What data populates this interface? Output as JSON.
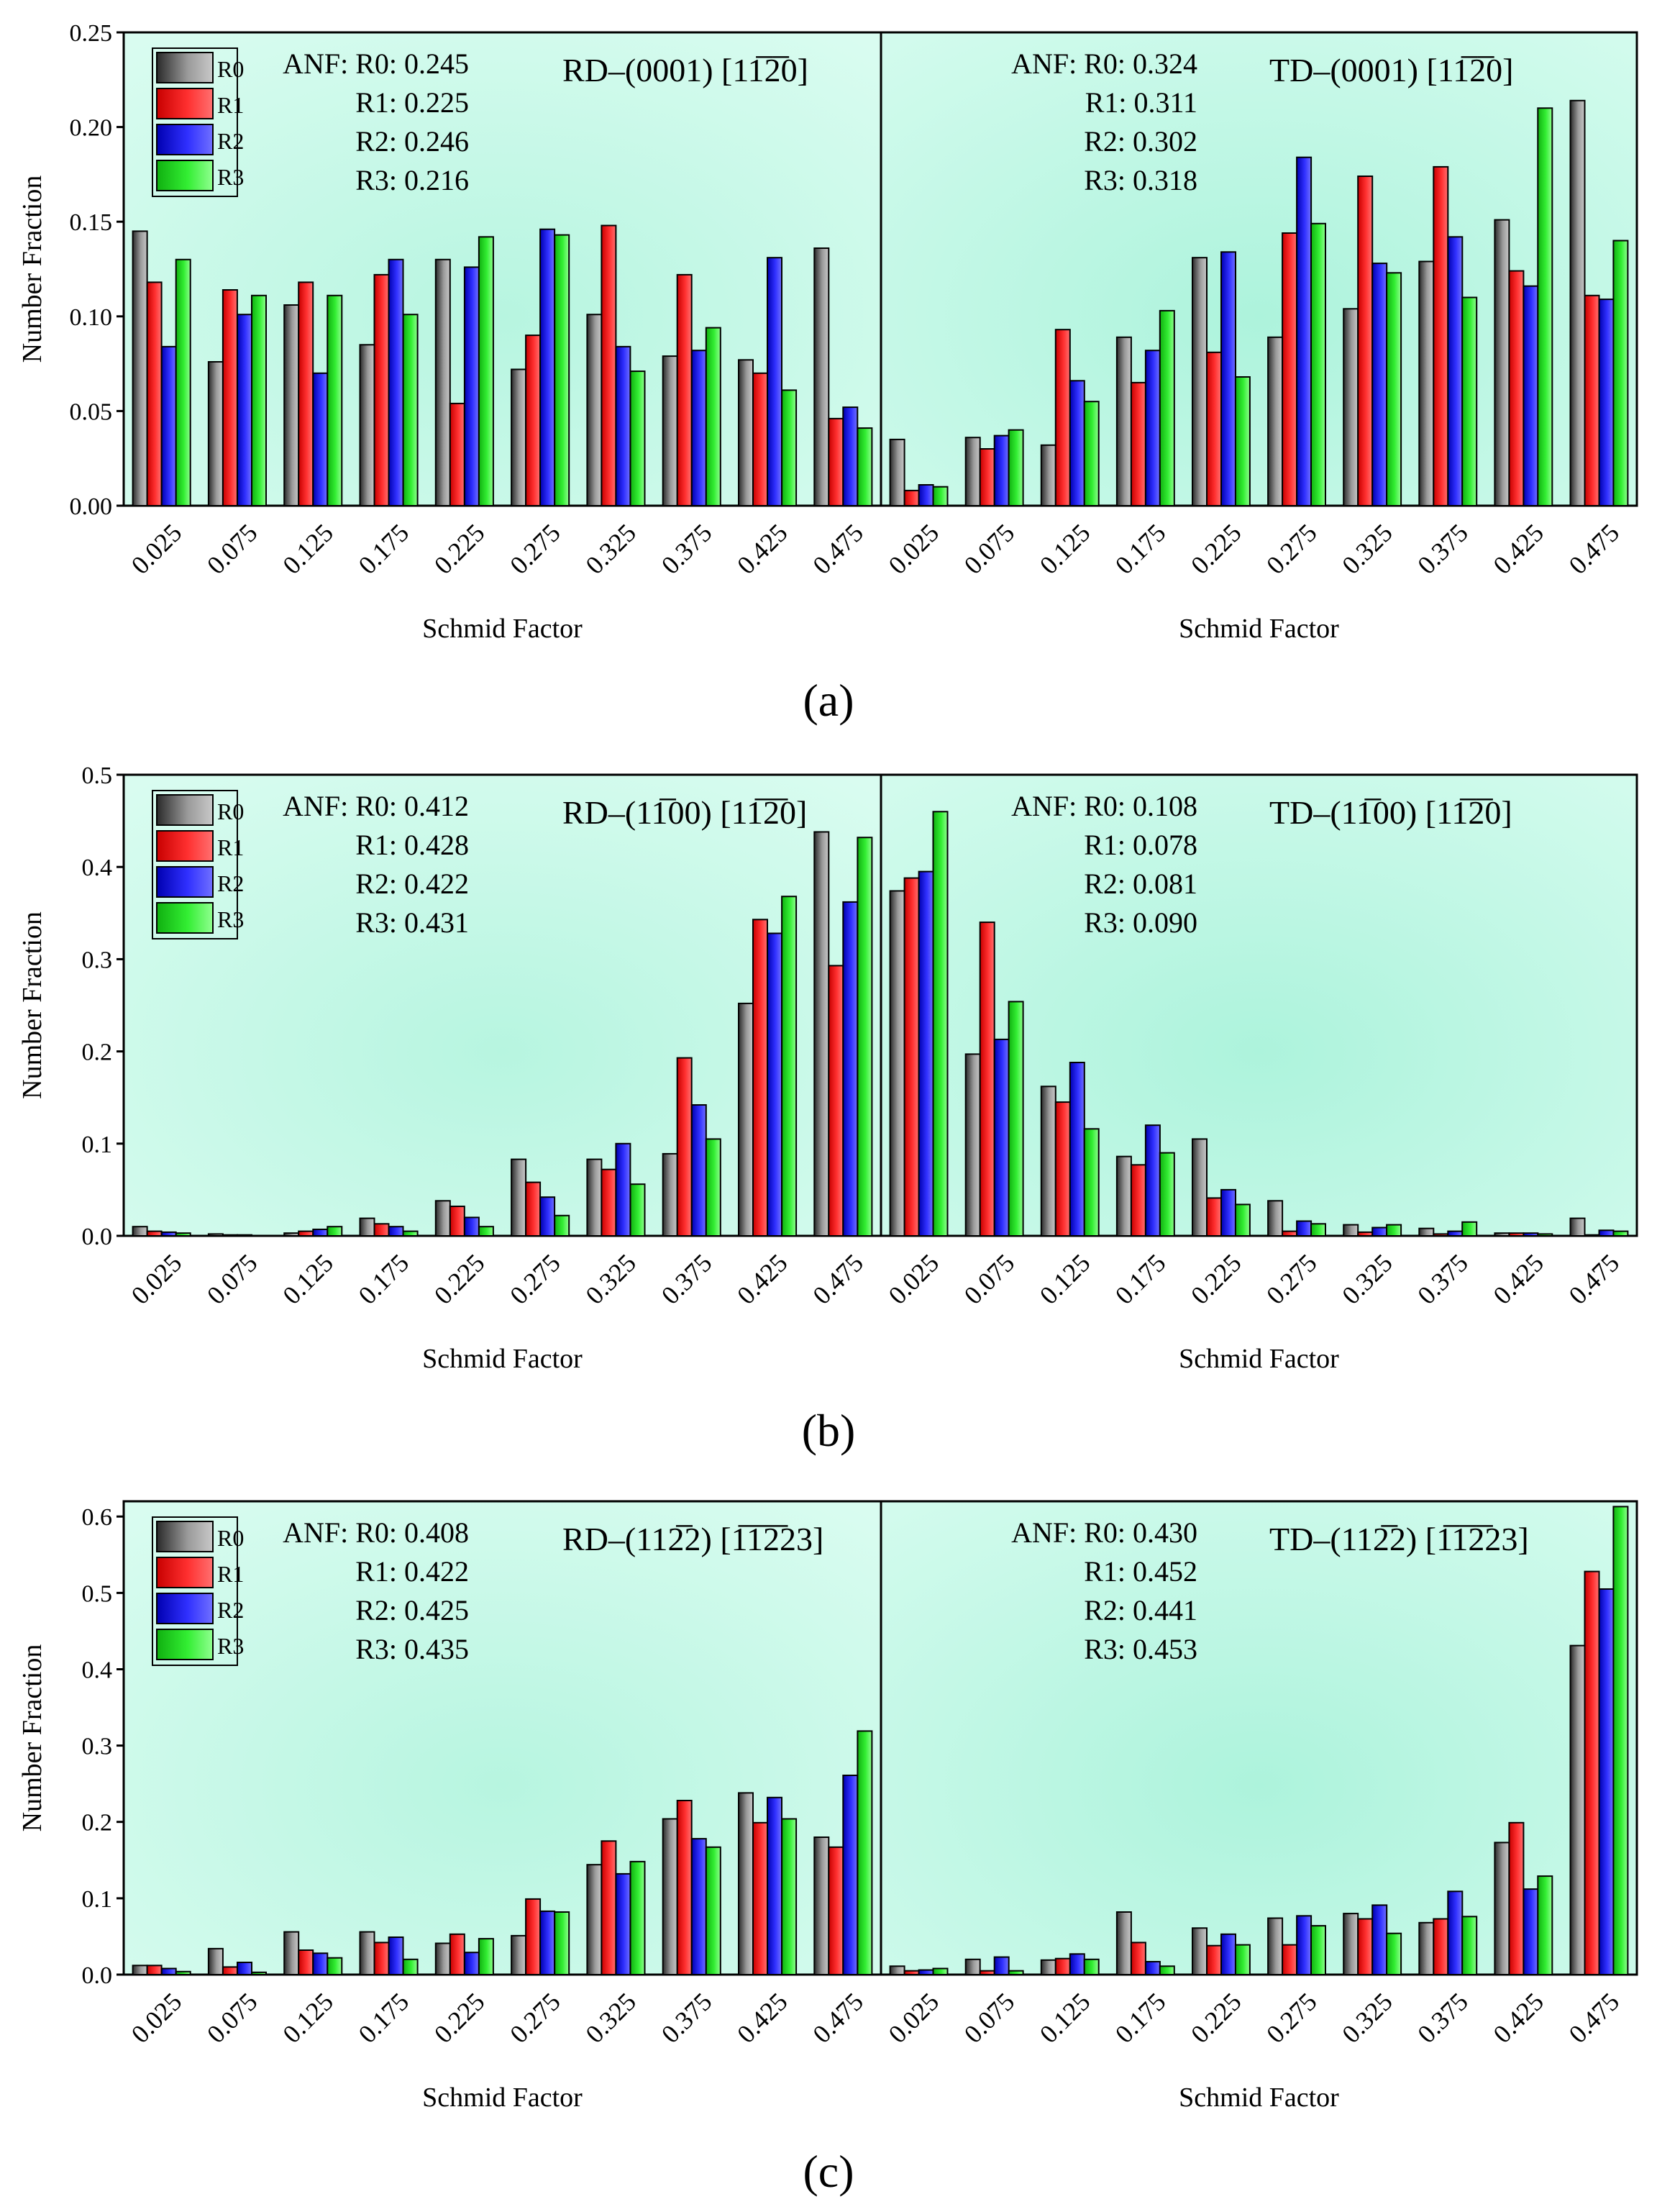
{
  "legend_series": [
    "R0",
    "R1",
    "R2",
    "R3"
  ],
  "series_colors": {
    "R0": "#7a7a7a",
    "R1": "#ff2a2a",
    "R2": "#2a2aff",
    "R3": "#2aee2a"
  },
  "captions": [
    "(a)",
    "(b)",
    "(c)"
  ],
  "chart_data": [
    {
      "type": "bar",
      "panel": "(a)",
      "subplot": "left",
      "slip_system": "RD–(0001) [11̅2̅0]",
      "anf": [
        "ANF: R0: 0.245",
        "R1: 0.225",
        "R2: 0.246",
        "R3: 0.216"
      ],
      "xlabel": "Schmid Factor",
      "ylabel": "Number Fraction",
      "ylim": [
        0,
        0.25
      ],
      "yticks": [
        "0.00",
        "0.05",
        "0.10",
        "0.15",
        "0.20",
        "0.25"
      ],
      "categories": [
        "0.025",
        "0.075",
        "0.125",
        "0.175",
        "0.225",
        "0.275",
        "0.325",
        "0.375",
        "0.425",
        "0.475"
      ],
      "legend": "top-left",
      "series": [
        {
          "name": "R0",
          "values": [
            0.145,
            0.076,
            0.106,
            0.085,
            0.13,
            0.072,
            0.101,
            0.079,
            0.077,
            0.136
          ]
        },
        {
          "name": "R1",
          "values": [
            0.118,
            0.114,
            0.118,
            0.122,
            0.054,
            0.09,
            0.148,
            0.122,
            0.07,
            0.046
          ]
        },
        {
          "name": "R2",
          "values": [
            0.084,
            0.101,
            0.07,
            0.13,
            0.126,
            0.146,
            0.084,
            0.082,
            0.131,
            0.052
          ]
        },
        {
          "name": "R3",
          "values": [
            0.13,
            0.111,
            0.111,
            0.101,
            0.142,
            0.143,
            0.071,
            0.094,
            0.061,
            0.041
          ]
        }
      ]
    },
    {
      "type": "bar",
      "panel": "(a)",
      "subplot": "right",
      "slip_system": "TD–(0001) [11̅2̅0]",
      "anf": [
        "ANF: R0: 0.324",
        "R1: 0.311",
        "R2: 0.302",
        "R3: 0.318"
      ],
      "xlabel": "Schmid Factor",
      "ylim": [
        0,
        0.25
      ],
      "categories": [
        "0.025",
        "0.075",
        "0.125",
        "0.175",
        "0.225",
        "0.275",
        "0.325",
        "0.375",
        "0.425",
        "0.475"
      ],
      "series": [
        {
          "name": "R0",
          "values": [
            0.035,
            0.036,
            0.032,
            0.089,
            0.131,
            0.089,
            0.104,
            0.129,
            0.151,
            0.214
          ]
        },
        {
          "name": "R1",
          "values": [
            0.008,
            0.03,
            0.093,
            0.065,
            0.081,
            0.144,
            0.174,
            0.179,
            0.124,
            0.111
          ]
        },
        {
          "name": "R2",
          "values": [
            0.011,
            0.037,
            0.066,
            0.082,
            0.134,
            0.184,
            0.128,
            0.142,
            0.116,
            0.109
          ]
        },
        {
          "name": "R3",
          "values": [
            0.01,
            0.04,
            0.055,
            0.103,
            0.068,
            0.149,
            0.123,
            0.11,
            0.21,
            0.14
          ]
        }
      ]
    },
    {
      "type": "bar",
      "panel": "(b)",
      "subplot": "left",
      "slip_system": "RD–(11̅00) [11̅2̅0]",
      "anf": [
        "ANF: R0: 0.412",
        "R1: 0.428",
        "R2: 0.422",
        "R3: 0.431"
      ],
      "xlabel": "Schmid Factor",
      "ylabel": "Number Fraction",
      "ylim": [
        0,
        0.5
      ],
      "yticks": [
        "0.0",
        "0.1",
        "0.2",
        "0.3",
        "0.4",
        "0.5"
      ],
      "categories": [
        "0.025",
        "0.075",
        "0.125",
        "0.175",
        "0.225",
        "0.275",
        "0.325",
        "0.375",
        "0.425",
        "0.475"
      ],
      "legend": "top-left",
      "series": [
        {
          "name": "R0",
          "values": [
            0.01,
            0.002,
            0.003,
            0.019,
            0.038,
            0.083,
            0.083,
            0.089,
            0.252,
            0.438
          ]
        },
        {
          "name": "R1",
          "values": [
            0.005,
            0.001,
            0.005,
            0.013,
            0.032,
            0.058,
            0.072,
            0.193,
            0.343,
            0.293
          ]
        },
        {
          "name": "R2",
          "values": [
            0.004,
            0.001,
            0.007,
            0.01,
            0.02,
            0.042,
            0.1,
            0.142,
            0.328,
            0.362
          ]
        },
        {
          "name": "R3",
          "values": [
            0.003,
            0.0,
            0.01,
            0.005,
            0.01,
            0.022,
            0.056,
            0.105,
            0.368,
            0.432
          ]
        }
      ]
    },
    {
      "type": "bar",
      "panel": "(b)",
      "subplot": "right",
      "slip_system": "TD–(11̅00) [11̅2̅0]",
      "anf": [
        "ANF: R0: 0.108",
        "R1: 0.078",
        "R2: 0.081",
        "R3: 0.090"
      ],
      "xlabel": "Schmid Factor",
      "ylim": [
        0,
        0.5
      ],
      "categories": [
        "0.025",
        "0.075",
        "0.125",
        "0.175",
        "0.225",
        "0.275",
        "0.325",
        "0.375",
        "0.425",
        "0.475"
      ],
      "series": [
        {
          "name": "R0",
          "values": [
            0.374,
            0.197,
            0.162,
            0.086,
            0.105,
            0.038,
            0.012,
            0.008,
            0.003,
            0.019
          ]
        },
        {
          "name": "R1",
          "values": [
            0.388,
            0.34,
            0.145,
            0.077,
            0.041,
            0.005,
            0.004,
            0.002,
            0.003,
            0.001
          ]
        },
        {
          "name": "R2",
          "values": [
            0.395,
            0.213,
            0.188,
            0.12,
            0.05,
            0.016,
            0.009,
            0.005,
            0.003,
            0.006
          ]
        },
        {
          "name": "R3",
          "values": [
            0.46,
            0.254,
            0.116,
            0.09,
            0.034,
            0.013,
            0.012,
            0.015,
            0.002,
            0.005
          ]
        }
      ]
    },
    {
      "type": "bar",
      "panel": "(c)",
      "subplot": "left",
      "slip_system": "RD–(112̅2) [1̅1̅2̅23]",
      "anf": [
        "ANF: R0: 0.408",
        "R1: 0.422",
        "R2: 0.425",
        "R3: 0.435"
      ],
      "xlabel": "Schmid Factor",
      "ylabel": "Number Fraction",
      "ylim": [
        0,
        0.62
      ],
      "yticks": [
        "0.0",
        "0.1",
        "0.2",
        "0.3",
        "0.4",
        "0.5",
        "0.6"
      ],
      "categories": [
        "0.025",
        "0.075",
        "0.125",
        "0.175",
        "0.225",
        "0.275",
        "0.325",
        "0.375",
        "0.425",
        "0.475"
      ],
      "legend": "top-left",
      "series": [
        {
          "name": "R0",
          "values": [
            0.012,
            0.034,
            0.056,
            0.056,
            0.041,
            0.051,
            0.144,
            0.204,
            0.238,
            0.18
          ]
        },
        {
          "name": "R1",
          "values": [
            0.012,
            0.01,
            0.032,
            0.042,
            0.053,
            0.099,
            0.175,
            0.228,
            0.199,
            0.167
          ]
        },
        {
          "name": "R2",
          "values": [
            0.008,
            0.016,
            0.028,
            0.049,
            0.029,
            0.083,
            0.132,
            0.178,
            0.232,
            0.261
          ]
        },
        {
          "name": "R3",
          "values": [
            0.004,
            0.003,
            0.022,
            0.02,
            0.047,
            0.082,
            0.148,
            0.167,
            0.204,
            0.319
          ]
        }
      ]
    },
    {
      "type": "bar",
      "panel": "(c)",
      "subplot": "right",
      "slip_system": "TD–(112̅2) [1̅1̅2̅23]",
      "anf": [
        "ANF: R0: 0.430",
        "R1: 0.452",
        "R2: 0.441",
        "R3: 0.453"
      ],
      "xlabel": "Schmid Factor",
      "ylim": [
        0,
        0.62
      ],
      "categories": [
        "0.025",
        "0.075",
        "0.125",
        "0.175",
        "0.225",
        "0.275",
        "0.325",
        "0.375",
        "0.425",
        "0.475"
      ],
      "series": [
        {
          "name": "R0",
          "values": [
            0.011,
            0.02,
            0.019,
            0.082,
            0.061,
            0.074,
            0.08,
            0.068,
            0.173,
            0.431
          ]
        },
        {
          "name": "R1",
          "values": [
            0.005,
            0.005,
            0.021,
            0.042,
            0.038,
            0.039,
            0.073,
            0.073,
            0.199,
            0.528
          ]
        },
        {
          "name": "R2",
          "values": [
            0.006,
            0.023,
            0.027,
            0.017,
            0.053,
            0.077,
            0.091,
            0.109,
            0.112,
            0.505
          ]
        },
        {
          "name": "R3",
          "values": [
            0.008,
            0.005,
            0.02,
            0.011,
            0.039,
            0.064,
            0.054,
            0.076,
            0.129,
            0.613
          ]
        }
      ]
    }
  ]
}
